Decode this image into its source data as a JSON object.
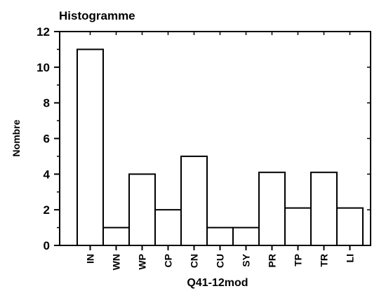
{
  "chart_data": {
    "type": "bar",
    "title": "Histogramme",
    "xlabel": "Q41-12mod",
    "ylabel": "Nombre",
    "categories": [
      "IN",
      "WN",
      "WP",
      "CP",
      "CN",
      "CU",
      "SY",
      "PR",
      "TP",
      "TR",
      "LI"
    ],
    "values": [
      11,
      1,
      4,
      2,
      5,
      1,
      1,
      4.1,
      2.1,
      4.1,
      2.1
    ],
    "ylim": [
      0,
      12
    ],
    "yticks": [
      "0",
      "2",
      "4",
      "6",
      "8",
      "10",
      "12"
    ],
    "grid": false,
    "legend": "none",
    "colors": {
      "bar_fill": "#ffffff",
      "bar_stroke": "#000000",
      "axis": "#000000"
    }
  }
}
